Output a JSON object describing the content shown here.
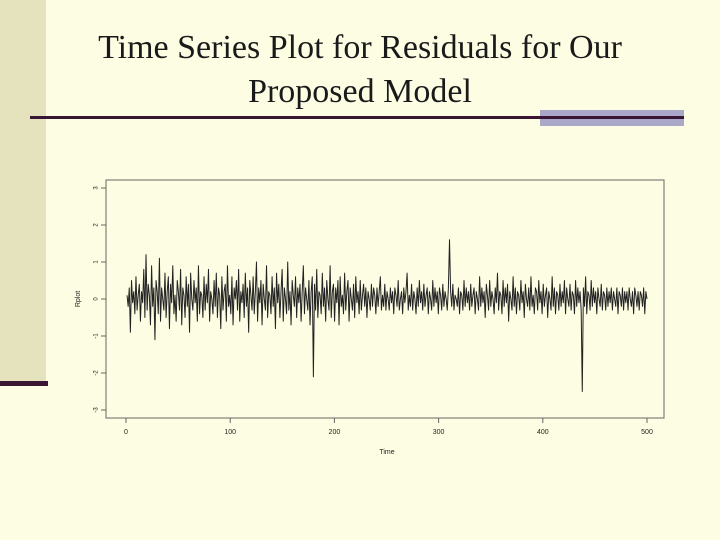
{
  "slide": {
    "title_line1": "Time Series Plot for Residuals for Our",
    "title_line2": "Proposed Model"
  },
  "colors": {
    "background": "#fdfde3",
    "sidebar": "#e4e3bd",
    "rule": "#3a1634",
    "rule_accent": "#a9a8c9"
  },
  "chart_data": {
    "type": "line",
    "title": "",
    "xlabel": "Time",
    "ylabel": "Rplot",
    "xlim": [
      0,
      500
    ],
    "ylim": [
      -3,
      3
    ],
    "xticks": [
      0,
      100,
      200,
      300,
      400,
      500
    ],
    "yticks": [
      -3,
      -2,
      -1,
      0,
      1,
      2,
      3
    ],
    "grid": false,
    "legend": "none",
    "series": [
      {
        "values": [
          0.1,
          -0.2,
          0.3,
          -0.9,
          0.5,
          -0.1,
          0.2,
          -0.4,
          0.6,
          -0.3,
          0.1,
          0.4,
          -0.6,
          0.2,
          -0.1,
          0.8,
          -0.5,
          1.2,
          -0.3,
          0.4,
          0.1,
          -0.7,
          0.9,
          -0.2,
          0.3,
          -1.1,
          0.5,
          0.2,
          -0.4,
          1.1,
          -0.6,
          0.3,
          0.0,
          -0.3,
          0.7,
          -0.5,
          0.2,
          0.6,
          -0.8,
          0.4,
          -0.1,
          0.9,
          -0.4,
          0.1,
          -0.6,
          0.5,
          0.2,
          -0.3,
          0.8,
          -0.7,
          0.3,
          0.1,
          -0.5,
          0.6,
          -0.2,
          0.4,
          -0.9,
          0.7,
          0.0,
          -0.3,
          0.5,
          -0.1,
          0.3,
          -0.6,
          0.9,
          -0.4,
          0.2,
          0.1,
          -0.5,
          0.6,
          -0.3,
          0.4,
          -0.1,
          0.8,
          -0.6,
          0.2,
          0.0,
          -0.4,
          0.5,
          -0.2,
          0.7,
          -0.5,
          0.3,
          0.1,
          -0.8,
          0.6,
          -0.3,
          0.2,
          0.4,
          -0.6,
          0.9,
          -0.2,
          0.1,
          -0.4,
          0.6,
          -0.7,
          0.3,
          0.0,
          0.5,
          -0.3,
          0.8,
          -0.6,
          0.2,
          -0.1,
          0.4,
          -0.5,
          0.7,
          -0.2,
          0.3,
          -0.9,
          0.5,
          0.1,
          -0.3,
          0.6,
          -0.4,
          0.2,
          1.0,
          -0.6,
          0.3,
          -0.1,
          0.5,
          -0.7,
          0.4,
          0.0,
          -0.3,
          0.9,
          -0.5,
          0.2,
          0.1,
          -0.4,
          0.6,
          -0.2,
          0.3,
          -0.8,
          0.7,
          -0.1,
          0.4,
          -0.5,
          0.2,
          0.8,
          -0.6,
          0.3,
          0.0,
          -0.4,
          1.0,
          -0.3,
          0.2,
          -0.7,
          0.5,
          0.1,
          -0.2,
          0.6,
          -0.5,
          0.3,
          -0.1,
          0.4,
          -0.6,
          0.2,
          0.9,
          -0.4,
          0.3,
          0.0,
          -0.3,
          0.5,
          -0.7,
          0.2,
          0.6,
          -2.1,
          0.4,
          -0.3,
          0.8,
          -0.5,
          0.2,
          0.1,
          -0.4,
          0.7,
          -0.2,
          0.3,
          -0.6,
          0.5,
          0.0,
          -0.3,
          0.9,
          -0.5,
          0.2,
          0.4,
          -0.6,
          0.3,
          -0.1,
          0.5,
          -0.7,
          0.6,
          -0.2,
          0.1,
          -0.4,
          0.7,
          -0.3,
          0.2,
          0.5,
          -0.6,
          0.3,
          0.0,
          -0.3,
          0.4,
          -0.5,
          0.6,
          -0.1,
          0.2,
          -0.4,
          0.5,
          -0.3,
          0.1,
          0.4,
          -0.2,
          0.3,
          -0.5,
          0.2,
          0.0,
          -0.3,
          0.4,
          -0.2,
          0.3,
          0.1,
          -0.4,
          0.3,
          -0.2,
          0.2,
          0.6,
          -0.3,
          0.1,
          -0.2,
          0.4,
          -0.3,
          0.2,
          0.0,
          -0.3,
          0.3,
          -0.1,
          0.2,
          -0.4,
          0.3,
          0.1,
          -0.2,
          0.5,
          -0.3,
          0.0,
          0.2,
          -0.4,
          0.3,
          -0.1,
          0.2,
          0.7,
          -0.3,
          0.1,
          -0.2,
          0.4,
          -0.3,
          0.2,
          0.0,
          -0.4,
          0.3,
          -0.2,
          0.5,
          -0.1,
          0.2,
          -0.3,
          0.4,
          -0.2,
          0.1,
          0.3,
          -0.4,
          0.2,
          0.0,
          -0.3,
          0.5,
          -0.2,
          0.3,
          -0.1,
          0.2,
          -0.4,
          0.3,
          0.1,
          -0.3,
          0.4,
          -0.2,
          0.2,
          0.0,
          -0.3,
          0.3,
          1.6,
          0.2,
          -0.2,
          0.4,
          -0.3,
          0.1,
          0.0,
          -0.2,
          0.3,
          -0.4,
          0.2,
          0.1,
          -0.3,
          0.5,
          -0.2,
          0.3,
          -0.1,
          0.2,
          -0.3,
          0.4,
          -0.2,
          0.1,
          0.3,
          -0.4,
          0.2,
          0.0,
          -0.3,
          0.6,
          -0.2,
          0.3,
          -0.1,
          0.2,
          -0.5,
          0.4,
          0.1,
          -0.3,
          0.5,
          -0.2,
          0.2,
          0.0,
          -0.4,
          0.3,
          -0.1,
          0.7,
          -0.3,
          0.2,
          0.1,
          -0.4,
          0.5,
          -0.2,
          0.3,
          -0.1,
          0.4,
          -0.6,
          0.2,
          0.0,
          -0.3,
          0.6,
          -0.2,
          0.3,
          -0.4,
          0.2,
          0.1,
          -0.3,
          0.5,
          -0.1,
          0.2,
          -0.5,
          0.4,
          0.0,
          -0.2,
          0.3,
          -0.3,
          0.6,
          -0.2,
          0.1,
          -0.4,
          0.3,
          0.2,
          -0.3,
          0.5,
          -0.1,
          0.2,
          -0.4,
          0.4,
          -0.2,
          0.1,
          0.3,
          -0.5,
          0.2,
          0.0,
          -0.3,
          0.6,
          -0.2,
          0.3,
          -0.4,
          0.2,
          0.1,
          -0.3,
          0.4,
          -0.2,
          0.2,
          -0.1,
          0.5,
          -0.4,
          0.3,
          0.0,
          -0.2,
          0.4,
          -0.3,
          0.2,
          0.1,
          -0.4,
          0.5,
          -0.2,
          0.3,
          -0.1,
          0.2,
          -0.3,
          -2.5,
          0.3,
          -0.2,
          0.6,
          -0.4,
          0.2,
          0.1,
          -0.3,
          0.5,
          -0.2,
          0.3,
          -0.1,
          0.2,
          -0.4,
          0.3,
          0.0,
          -0.2,
          0.4,
          -0.3,
          0.2,
          0.1,
          -0.3,
          0.3,
          -0.2,
          0.2,
          -0.1,
          0.3,
          -0.3,
          0.2,
          0.0,
          -0.2,
          0.3,
          -0.4,
          0.2,
          0.1,
          -0.2,
          0.3,
          -0.3,
          0.2,
          -0.1,
          0.2,
          -0.3,
          0.3,
          0.0,
          -0.2,
          0.2,
          -0.4,
          0.3,
          0.1,
          -0.2,
          0.2,
          -0.3,
          0.2,
          0.1,
          -0.2,
          0.3,
          -0.4,
          0.2,
          0.0
        ]
      }
    ]
  }
}
